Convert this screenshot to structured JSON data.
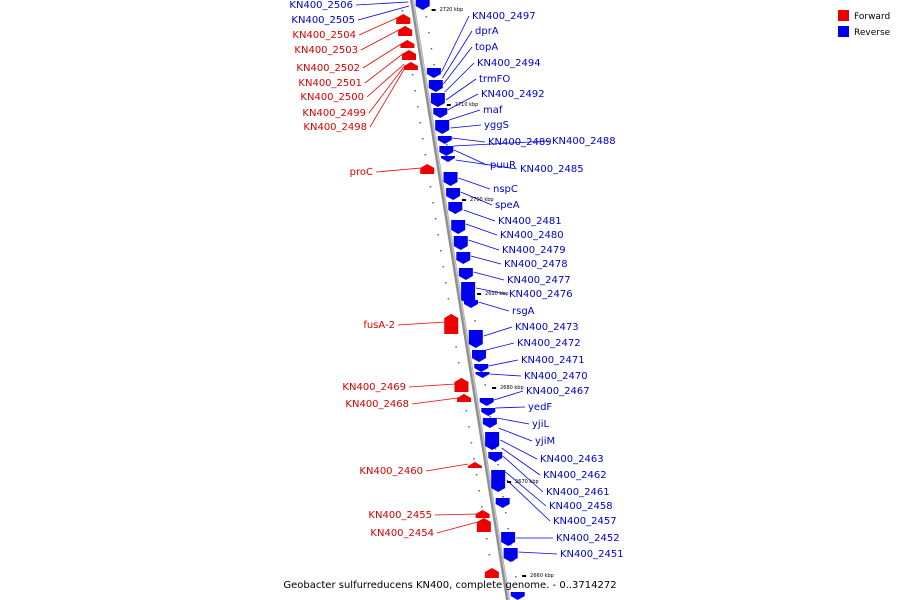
{
  "caption": "Geobacter sulfurreducens KN400, complete genome. - 0..3714272",
  "legend": {
    "forward": {
      "label": "Forward",
      "color": "#ee0000"
    },
    "reverse": {
      "label": "Reverse",
      "color": "#0000ee"
    }
  },
  "backbone_color": "#808080",
  "ticks": [
    "2720 kbp",
    "2710 kbp",
    "2700 kbp",
    "2690 kbp",
    "2680 kbp",
    "2670 kbp",
    "2660 kbp"
  ],
  "forward_genes": [
    "KN400_2504",
    "KN400_2503",
    "KN400_2502",
    "KN400_2501",
    "KN400_2500",
    "KN400_2499",
    "KN400_2498",
    "proC",
    "fusA-2",
    "KN400_2469",
    "KN400_2468",
    "KN400_2460",
    "KN400_2455",
    "KN400_2454"
  ],
  "reverse_genes": [
    "KN400_2506",
    "KN400_2505",
    "KN400_2497",
    "dprA",
    "topA",
    "KN400_2494",
    "trmFO",
    "KN400_2492",
    "maf",
    "yggS",
    "KN400_2489",
    "KN400_2488",
    "puuR",
    "KN400_2485",
    "nspC",
    "speA",
    "KN400_2481",
    "KN400_2480",
    "KN400_2479",
    "KN400_2478",
    "KN400_2477",
    "KN400_2476",
    "rsgA",
    "KN400_2473",
    "KN400_2472",
    "KN400_2471",
    "KN400_2470",
    "KN400_2467",
    "yedF",
    "yjiL",
    "yjiM",
    "KN400_2463",
    "KN400_2462",
    "KN400_2461",
    "KN400_2458",
    "KN400_2457",
    "KN400_2452",
    "KN400_2451"
  ]
}
